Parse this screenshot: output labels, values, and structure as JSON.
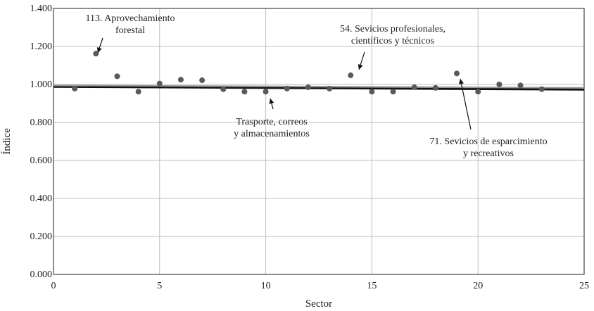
{
  "chart_data": {
    "type": "scatter",
    "xlabel": "Sector",
    "ylabel": "Índice",
    "xlim": [
      0,
      25
    ],
    "ylim": [
      0,
      1.4
    ],
    "x_ticks": [
      0,
      5,
      10,
      15,
      20,
      25
    ],
    "x_tick_labels": [
      "0",
      "5",
      "10",
      "15",
      "20",
      "25"
    ],
    "y_ticks": [
      0,
      0.2,
      0.4,
      0.6,
      0.8,
      1.0,
      1.2,
      1.4
    ],
    "y_tick_labels": [
      "0.000",
      "0.200",
      "0.400",
      "0.600",
      "0.800",
      "1.000",
      "1.200",
      "1.400"
    ],
    "grid": true,
    "series": [
      {
        "kind": "points",
        "x": [
          1,
          2,
          3,
          4,
          5,
          6,
          7,
          8,
          9,
          10,
          11,
          12,
          13,
          14,
          15,
          16,
          17,
          18,
          19,
          20,
          21,
          22,
          23
        ],
        "y": [
          0.978,
          1.162,
          1.043,
          0.962,
          1.005,
          1.025,
          1.022,
          0.975,
          0.962,
          0.962,
          0.978,
          0.985,
          0.978,
          1.048,
          0.962,
          0.962,
          0.985,
          0.982,
          1.058,
          0.962,
          1.0,
          0.995,
          0.975
        ]
      },
      {
        "kind": "line",
        "x": [
          0,
          25
        ],
        "y": [
          0.99,
          0.975
        ]
      },
      {
        "kind": "line",
        "x": [
          0,
          25
        ],
        "y": [
          0.995,
          0.982
        ]
      }
    ],
    "annotations": [
      {
        "lines": [
          "113. Aprovechamiento",
          "forestal"
        ],
        "point_x": 2,
        "point_y": 1.162
      },
      {
        "lines": [
          "54. Sevicios profesionales,",
          "científicos y técnicos"
        ],
        "point_x": 14,
        "point_y": 1.048
      },
      {
        "lines": [
          "Trasporte, correos",
          "y almacenamientos"
        ],
        "point_x": 10,
        "point_y": 0.962
      },
      {
        "lines": [
          "71. Sevicios de esparcimiento",
          "y recreativos"
        ],
        "point_x": 19,
        "point_y": 1.058
      }
    ],
    "colors": {
      "points": "#5a5a5a",
      "line_main": "#111111",
      "line_secondary": "#9a9a9a"
    }
  }
}
